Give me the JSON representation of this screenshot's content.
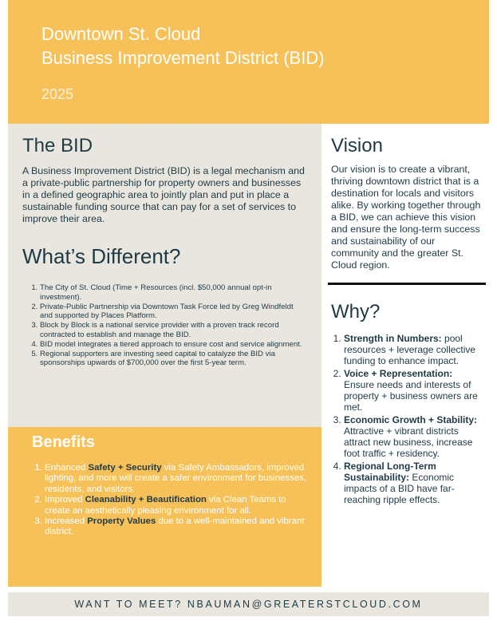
{
  "header": {
    "title_lines": [
      "Downtown St. Cloud",
      "Business Improvement District (BID)"
    ],
    "year": "2025"
  },
  "bid": {
    "heading": "The BID",
    "body": "A Business Improvement District (BID) is a legal mechanism and a private-public partnership for property owners and businesses in a defined geographic area to jointly plan and put in place a sustainable funding source that can pay for a set of services to improve their area."
  },
  "different": {
    "heading": "What’s Different?",
    "items": [
      "The City of St. Cloud (Time + Resources (incl. $50,000 annual opt-in investment).",
      "Private-Public Partnership via Downtown Task Force led by Greg Windfeldt and supported by Places Platform.",
      "Block by Block is a national service provider with a proven track record contracted to establish and manage the BID.",
      "BID model integrates a tiered approach to ensure cost and service alignment.",
      "Regional supporters are investing seed capital to catalyze the BID via sponsorships upwards of $700,000 over the first 5-year term."
    ]
  },
  "benefits": {
    "heading": "Benefits",
    "items": [
      {
        "before": "Enhanced ",
        "bold": "Safety + Security",
        "after": " via Safety Ambassadors, improved lighting, and more will create a safer environment for businesses, residents, and visitors."
      },
      {
        "before": "Improved ",
        "bold": "Cleanability + Beautification",
        "after": " via Clean Teams to create an aesthetically pleasing environment for all."
      },
      {
        "before": "Increased ",
        "bold": "Property Values",
        "after": " due to a well-maintained and vibrant district."
      }
    ]
  },
  "vision": {
    "heading": "Vision",
    "body": "Our vision is to create a vibrant, thriving downtown district that is a destination for locals and visitors alike. By working together through a BID, we can achieve this vision and ensure the long-term success and sustainability of our community and the greater St. Cloud region."
  },
  "why": {
    "heading": "Why?",
    "items": [
      {
        "title": "Strength in Numbers:",
        "body": "pool resources + leverage collective funding to enhance impact."
      },
      {
        "title": "Voice + Representation:",
        "body": "Ensure needs and interests of property + business owners are met."
      },
      {
        "title": "Economic Growth + Stability:",
        "body": "Attractive + vibrant districts attract new business, increase foot traffic + residency."
      },
      {
        "title": "Regional Long-Term Sustainability:",
        "body": "Economic impacts of a BID have far-reaching ripple effects."
      }
    ]
  },
  "footer": {
    "text": "WANT TO MEET? NBAUMAN@GREATERSTCLOUD.COM"
  }
}
